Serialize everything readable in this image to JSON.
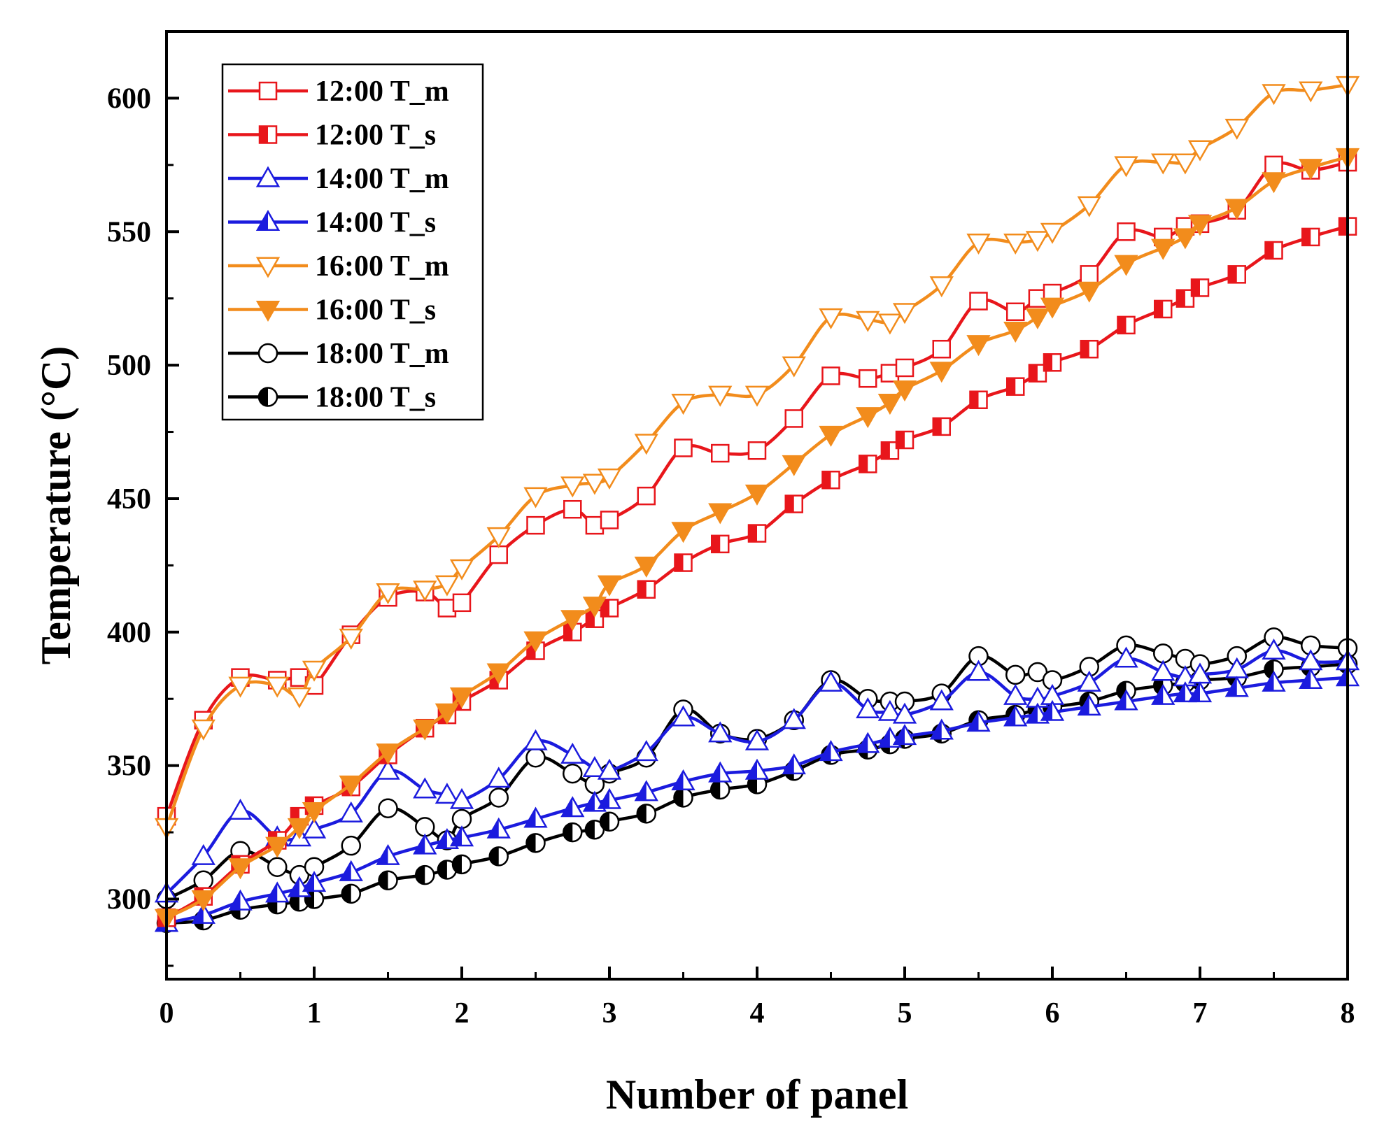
{
  "chart_data": {
    "type": "line",
    "title": "",
    "xlabel": "Number of panel",
    "ylabel": "Temperature (°C)",
    "xlim": [
      0,
      8
    ],
    "ylim": [
      270,
      625
    ],
    "xticks": [
      0,
      1,
      2,
      3,
      4,
      5,
      6,
      7,
      8
    ],
    "yticks": [
      300,
      350,
      400,
      450,
      500,
      550,
      600
    ],
    "grid": false,
    "legend_position": "top-left",
    "x": [
      0,
      0.25,
      0.5,
      0.75,
      0.9,
      1,
      1.25,
      1.5,
      1.75,
      1.9,
      2,
      2.25,
      2.5,
      2.75,
      2.9,
      3,
      3.25,
      3.5,
      3.75,
      4,
      4.25,
      4.5,
      4.75,
      4.9,
      5,
      5.25,
      5.5,
      5.75,
      5.9,
      6,
      6.25,
      6.5,
      6.75,
      6.9,
      7,
      7.25,
      7.5,
      7.75,
      8
    ],
    "series": [
      {
        "name": "12:00 T_m",
        "color": "#e8161b",
        "marker": "square-open",
        "values": [
          331,
          367,
          383,
          382,
          383,
          380,
          399,
          413,
          415,
          409,
          411,
          429,
          440,
          446,
          440,
          442,
          451,
          469,
          467,
          468,
          480,
          496,
          495,
          497,
          499,
          506,
          524,
          520,
          525,
          527,
          534,
          550,
          548,
          552,
          553,
          558,
          575,
          573,
          576
        ]
      },
      {
        "name": "12:00 T_s",
        "color": "#e8161b",
        "marker": "square-half",
        "values": [
          293,
          301,
          313,
          322,
          331,
          335,
          342,
          354,
          364,
          369,
          374,
          382,
          393,
          400,
          405,
          409,
          416,
          426,
          433,
          437,
          448,
          457,
          463,
          468,
          472,
          477,
          487,
          492,
          497,
          501,
          506,
          515,
          521,
          525,
          529,
          534,
          543,
          548,
          552
        ]
      },
      {
        "name": "14:00 T_m",
        "color": "#1b1bde",
        "marker": "triangle-open",
        "values": [
          302,
          316,
          333,
          323,
          323,
          326,
          332,
          348,
          341,
          339,
          337,
          345,
          359,
          354,
          349,
          348,
          355,
          368,
          362,
          359,
          367,
          381,
          371,
          370,
          369,
          374,
          385,
          376,
          375,
          376,
          381,
          390,
          385,
          383,
          384,
          386,
          393,
          389,
          389
        ]
      },
      {
        "name": "14:00 T_s",
        "color": "#1b1bde",
        "marker": "triangle-half",
        "values": [
          291,
          294,
          299,
          302,
          304,
          306,
          310,
          316,
          320,
          322,
          323,
          326,
          330,
          334,
          336,
          337,
          340,
          344,
          347,
          348,
          350,
          355,
          358,
          360,
          361,
          363,
          366,
          368,
          369,
          370,
          372,
          374,
          376,
          377,
          377,
          379,
          381,
          382,
          383
        ]
      },
      {
        "name": "16:00 T_m",
        "color": "#f28c1c",
        "marker": "triangle-down-open",
        "values": [
          327,
          364,
          380,
          380,
          376,
          386,
          398,
          415,
          416,
          418,
          424,
          436,
          451,
          455,
          456,
          458,
          471,
          486,
          489,
          489,
          500,
          518,
          517,
          516,
          520,
          530,
          546,
          546,
          547,
          550,
          560,
          575,
          576,
          576,
          581,
          589,
          602,
          603,
          605
        ]
      },
      {
        "name": "16:00 T_s",
        "color": "#f28c1c",
        "marker": "triangle-down-filled",
        "values": [
          293,
          300,
          312,
          320,
          327,
          333,
          343,
          355,
          364,
          370,
          376,
          385,
          397,
          405,
          410,
          418,
          425,
          438,
          445,
          452,
          463,
          474,
          481,
          486,
          491,
          498,
          508,
          513,
          518,
          522,
          528,
          538,
          544,
          548,
          553,
          559,
          569,
          574,
          578
        ]
      },
      {
        "name": "18:00 T_m",
        "color": "#000000",
        "marker": "circle-open",
        "values": [
          300,
          307,
          318,
          312,
          309,
          312,
          320,
          334,
          327,
          322,
          330,
          338,
          353,
          347,
          343,
          347,
          353,
          371,
          362,
          360,
          367,
          382,
          375,
          374,
          374,
          377,
          391,
          384,
          385,
          382,
          387,
          395,
          392,
          390,
          388,
          391,
          398,
          395,
          394
        ]
      },
      {
        "name": "18:00 T_s",
        "color": "#000000",
        "marker": "circle-half",
        "values": [
          291,
          292,
          296,
          298,
          299,
          300,
          302,
          307,
          309,
          311,
          313,
          316,
          321,
          325,
          326,
          329,
          332,
          338,
          341,
          343,
          348,
          354,
          356,
          358,
          360,
          362,
          367,
          369,
          371,
          372,
          374,
          378,
          380,
          381,
          382,
          383,
          386,
          387,
          388
        ]
      }
    ]
  }
}
